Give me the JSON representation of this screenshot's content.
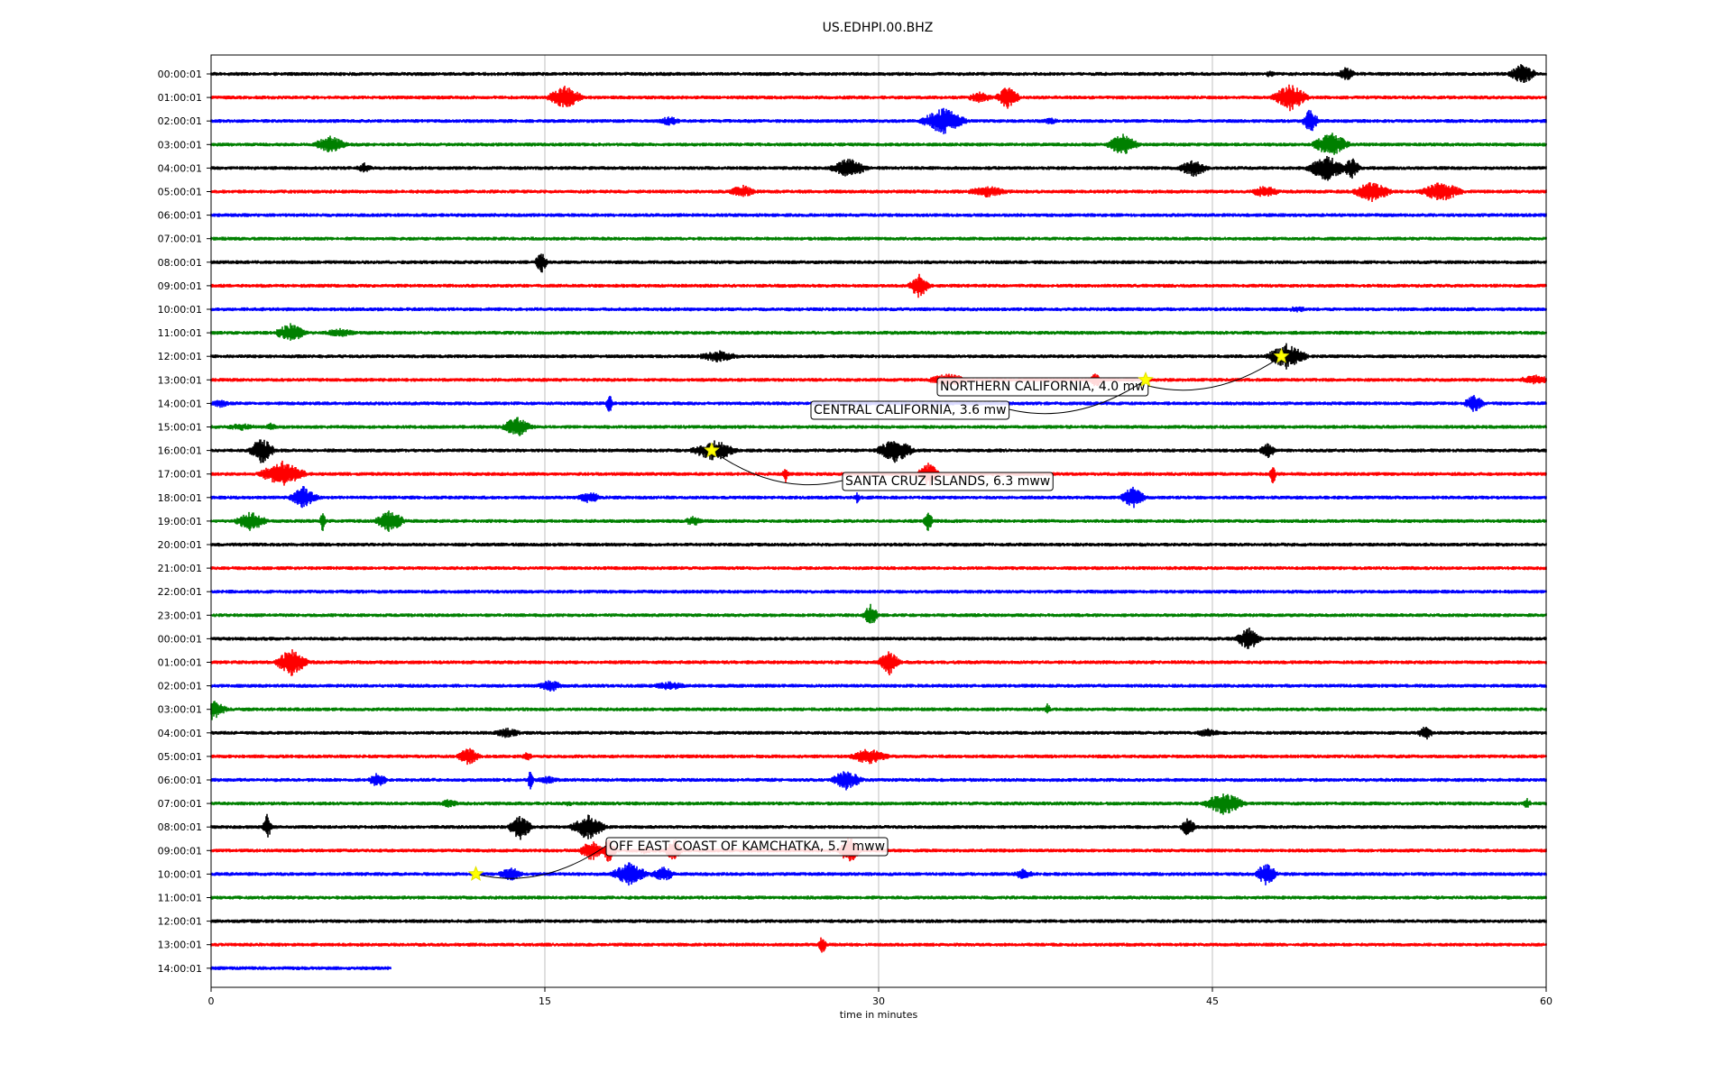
{
  "chart_data": {
    "type": "line",
    "title": "US.EDHPI.00.BHZ",
    "xlabel": "time in minutes",
    "ylabel": "",
    "xlim": [
      0,
      60
    ],
    "x_ticks": [
      "0",
      "15",
      "30",
      "45",
      "60"
    ],
    "grid": "vertical",
    "trace_colors": [
      "#000000",
      "#ff0000",
      "#0000ff",
      "#008000"
    ],
    "row_labels": [
      "00:00:01",
      "01:00:01",
      "02:00:01",
      "03:00:01",
      "04:00:01",
      "05:00:01",
      "06:00:01",
      "07:00:01",
      "08:00:01",
      "09:00:01",
      "10:00:01",
      "11:00:01",
      "12:00:01",
      "13:00:01",
      "14:00:01",
      "15:00:01",
      "16:00:01",
      "17:00:01",
      "18:00:01",
      "19:00:01",
      "20:00:01",
      "21:00:01",
      "22:00:01",
      "23:00:01",
      "00:00:01",
      "01:00:01",
      "02:00:01",
      "03:00:01",
      "04:00:01",
      "05:00:01",
      "06:00:01",
      "07:00:01",
      "08:00:01",
      "09:00:01",
      "10:00:01",
      "11:00:01",
      "12:00:01",
      "13:00:01",
      "14:00:01"
    ],
    "last_row_end_minute": 8.1,
    "events": [
      {
        "label": "NORTHERN CALIFORNIA, 4.0 mw",
        "row": 12,
        "minute": 48.1
      },
      {
        "label": "CENTRAL CALIFORNIA, 3.6 mw",
        "row": 13,
        "minute": 42.0
      },
      {
        "label": "SANTA CRUZ ISLANDS, 6.3 mww",
        "row": 16,
        "minute": 22.5
      },
      {
        "label": "OFF EAST COAST OF KAMCHATKA, 5.7 mww",
        "row": 34,
        "minute": 11.9
      }
    ]
  }
}
